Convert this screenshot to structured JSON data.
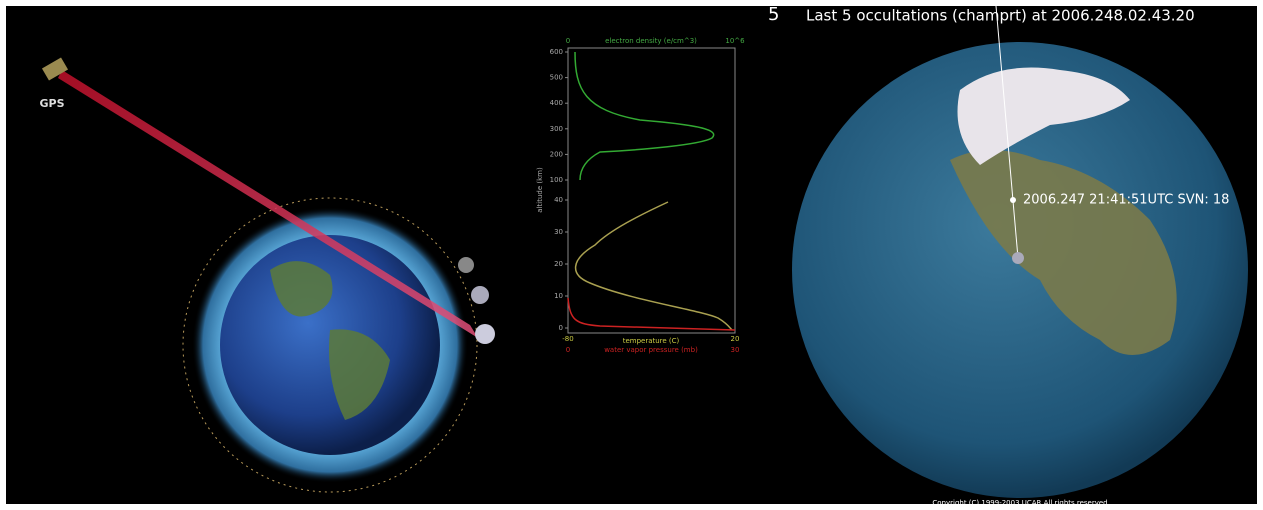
{
  "left_panel": {
    "satellite_label": "GPS"
  },
  "profile_panel": {
    "top_axis": {
      "min_label": "0",
      "label": "electron density (e/cm^3)",
      "max_label": "10^6"
    },
    "upper_ticks": [
      "600",
      "500",
      "400",
      "300",
      "200",
      "100"
    ],
    "lower_ticks": [
      "40",
      "30",
      "20",
      "10",
      "0"
    ],
    "y_axis_label": "altitude (km)",
    "temperature_axis": {
      "min_label": "-80",
      "label": "temperature (C)",
      "max_label": "20"
    },
    "vapor_axis": {
      "min_label": "0",
      "label": "water vapor pressure (mb)",
      "max_label": "30"
    }
  },
  "globe_panel": {
    "count": "5",
    "title": "Last 5 occultations (champrt) at 2006.248.02.43.20",
    "marker_label": "2006.247 21:41:51UTC SVN: 18",
    "copyright": "Copyright (C) 1999-2003 UCAR All rights reserved"
  }
}
